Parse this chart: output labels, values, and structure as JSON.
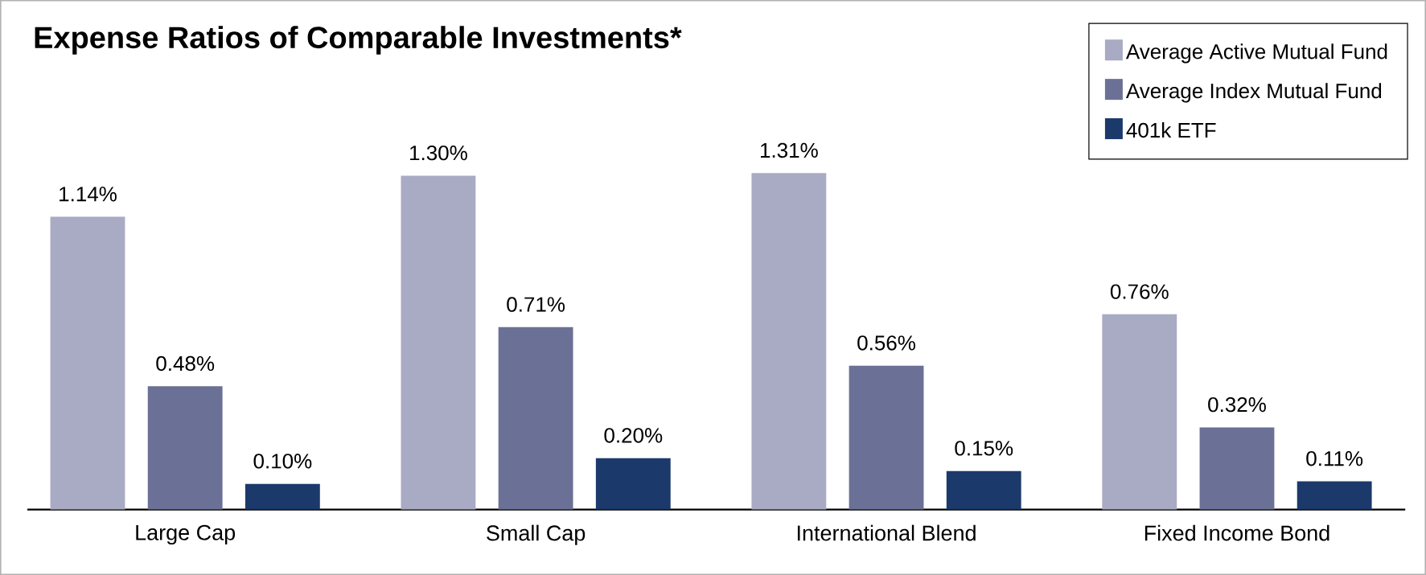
{
  "chart_data": {
    "type": "bar",
    "title": "Expense Ratios of Comparable Investments*",
    "categories": [
      "Large Cap",
      "Small Cap",
      "International Blend",
      "Fixed Income Bond"
    ],
    "series": [
      {
        "name": "Average Active Mutual Fund",
        "color": "#a9aac4",
        "values": [
          1.14,
          1.3,
          1.31,
          0.76
        ],
        "value_labels": [
          "1.14%",
          "1.30%",
          "1.31%",
          "0.76%"
        ]
      },
      {
        "name": "Average Index Mutual Fund",
        "color": "#6b7096",
        "values": [
          0.48,
          0.71,
          0.56,
          0.32
        ],
        "value_labels": [
          "0.48%",
          "0.71%",
          "0.56%",
          "0.32%"
        ]
      },
      {
        "name": "401k ETF",
        "color": "#1b3a6b",
        "values": [
          0.1,
          0.2,
          0.15,
          0.11
        ],
        "value_labels": [
          "0.10%",
          "0.20%",
          "0.15%",
          "0.11%"
        ]
      }
    ],
    "legend": "top right"
  }
}
